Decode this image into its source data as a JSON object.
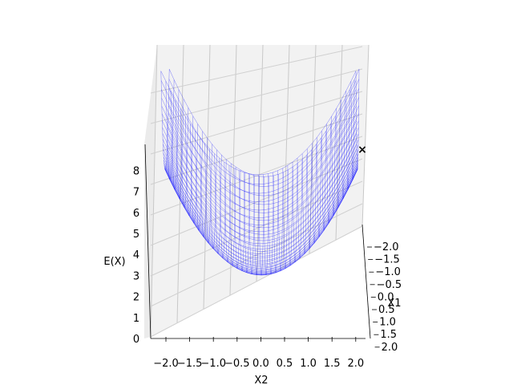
{
  "chart_data": {
    "type": "surface-3d",
    "title": "",
    "xlabel": "X2",
    "ylabel": "X1",
    "zlabel": "E(X)",
    "x_ticks": [
      "−2.0",
      "−1.5",
      "−1.0",
      "−0.5",
      "0.0",
      "0.5",
      "1.0",
      "1.5",
      "2.0"
    ],
    "y_ticks": [
      "−2.0",
      "−1.5",
      "−1.0",
      "−0.5",
      "0.0",
      "0.5",
      "1.0",
      "1.5",
      "2.0"
    ],
    "z_ticks": [
      "0",
      "1",
      "2",
      "3",
      "4",
      "5",
      "6",
      "7",
      "8"
    ],
    "x_range": [
      -2,
      2
    ],
    "y_range": [
      -2,
      2
    ],
    "z_range": [
      0,
      8
    ],
    "surface_function": "x1^2 + x2^2",
    "grid": true,
    "marker": {
      "symbol": "×",
      "x1": -2,
      "x2": 2,
      "z": 8,
      "color": "#000000"
    },
    "wire_color": "#0000ff"
  }
}
